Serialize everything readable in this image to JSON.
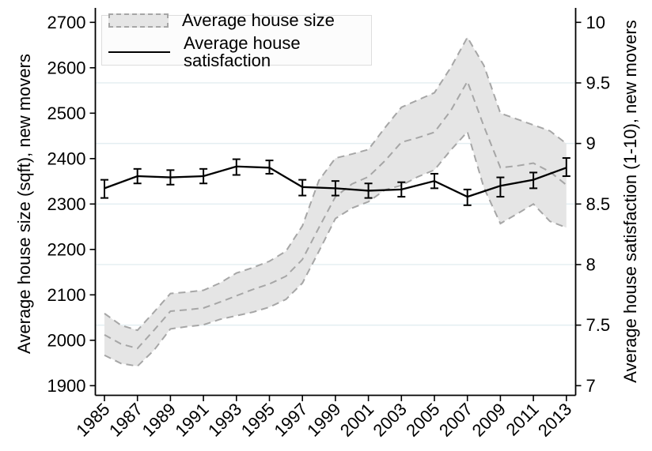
{
  "chart": {
    "legend": {
      "size_label": "Average house size",
      "satisfaction_label": "Average house satisfaction"
    },
    "left_axis": {
      "title": "Average house size (sqft), new movers",
      "tick_values": [
        1900,
        2000,
        2100,
        2200,
        2300,
        2400,
        2500,
        2600,
        2700
      ],
      "tick_labels": [
        "1900",
        "2000",
        "2100",
        "2200",
        "2300",
        "2400",
        "2500",
        "2600",
        "2700"
      ]
    },
    "right_axis": {
      "title": "Average house satisfaction (1-10), new movers",
      "tick_values": [
        7,
        7.5,
        8,
        8.5,
        9,
        9.5,
        10
      ],
      "tick_labels": [
        "7",
        "7.5",
        "8",
        "8.5",
        "9",
        "9.5",
        "10"
      ],
      "gridline_values": [
        7.5,
        8,
        8.5,
        9,
        9.5
      ]
    },
    "x_axis": {
      "tick_years": [
        1985,
        1987,
        1989,
        1991,
        1993,
        1995,
        1997,
        1999,
        2001,
        2003,
        2005,
        2007,
        2009,
        2011,
        2013
      ],
      "tick_labels": [
        "1985",
        "1987",
        "1989",
        "1991",
        "1993",
        "1995",
        "1997",
        "1999",
        "2001",
        "2003",
        "2005",
        "2007",
        "2009",
        "2011",
        "2013"
      ]
    },
    "colors": {
      "band_fill": "#e5e5e5",
      "band_edge": "#a6a6a6",
      "satisfaction_line": "#000000",
      "grid": "#e3eef1",
      "axis": "#000000"
    }
  },
  "chart_data": {
    "type": "line",
    "title": "",
    "xlabel": "",
    "left_ylabel": "Average house size (sqft), new movers",
    "right_ylabel": "Average house satisfaction (1-10), new movers",
    "left_ylim": [
      1900,
      2700
    ],
    "right_ylim": [
      7,
      10
    ],
    "grid": "horizontal gridlines at right-axis values 7.5, 8, 8.5, 9, 9.5",
    "legend_position": "top-left inside plot",
    "x": [
      1985,
      1986,
      1987,
      1988,
      1989,
      1990,
      1991,
      1992,
      1993,
      1994,
      1995,
      1996,
      1997,
      1998,
      1999,
      2000,
      2001,
      2002,
      2003,
      2004,
      2005,
      2006,
      2007,
      2008,
      2009,
      2010,
      2011,
      2012,
      2013
    ],
    "series": [
      {
        "name": "Average house size",
        "axis": "left",
        "style": "dashed center line with shaded confidence band (dashed edges)",
        "center": [
          2012,
          1992,
          1982,
          2022,
          2064,
          2067,
          2071,
          2084,
          2098,
          2112,
          2124,
          2141,
          2178,
          2248,
          2316,
          2344,
          2360,
          2395,
          2436,
          2446,
          2458,
          2506,
          2570,
          2471,
          2380,
          2384,
          2390,
          2371,
          2342
        ],
        "lower": [
          1967,
          1949,
          1943,
          1978,
          2025,
          2030,
          2034,
          2046,
          2054,
          2062,
          2073,
          2090,
          2126,
          2196,
          2268,
          2291,
          2305,
          2331,
          2341,
          2360,
          2375,
          2419,
          2459,
          2336,
          2257,
          2278,
          2300,
          2262,
          2248
        ],
        "upper": [
          2059,
          2033,
          2022,
          2062,
          2103,
          2106,
          2110,
          2126,
          2148,
          2160,
          2174,
          2196,
          2252,
          2352,
          2401,
          2410,
          2420,
          2468,
          2513,
          2529,
          2545,
          2601,
          2667,
          2605,
          2500,
          2487,
          2474,
          2461,
          2433
        ]
      },
      {
        "name": "Average house satisfaction",
        "axis": "right",
        "style": "solid black line with capped error bars at labeled years",
        "x": [
          1985,
          1987,
          1989,
          1991,
          1993,
          1995,
          1997,
          1999,
          2001,
          2003,
          2005,
          2007,
          2009,
          2011,
          2013
        ],
        "values": [
          8.63,
          8.73,
          8.72,
          8.73,
          8.81,
          8.8,
          8.64,
          8.63,
          8.61,
          8.62,
          8.69,
          8.56,
          8.65,
          8.7,
          8.8
        ],
        "ci_low": [
          8.55,
          8.67,
          8.66,
          8.67,
          8.74,
          8.75,
          8.57,
          8.57,
          8.55,
          8.56,
          8.63,
          8.49,
          8.56,
          8.63,
          8.73
        ],
        "ci_high": [
          8.7,
          8.79,
          8.78,
          8.79,
          8.87,
          8.86,
          8.7,
          8.69,
          8.67,
          8.68,
          8.75,
          8.62,
          8.72,
          8.76,
          8.88
        ]
      }
    ]
  }
}
